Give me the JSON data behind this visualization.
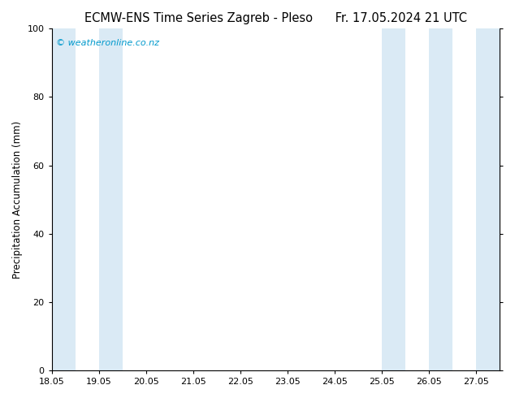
{
  "title_left": "ECMW-ENS Time Series Zagreb - Pleso",
  "title_right": "Fr. 17.05.2024 21 UTC",
  "ylabel": "Precipitation Accumulation (mm)",
  "watermark": "© weatheronline.co.nz",
  "xlim_start": 18.05,
  "xlim_end": 27.55,
  "ylim": [
    0,
    100
  ],
  "yticks": [
    0,
    20,
    40,
    60,
    80,
    100
  ],
  "xticks": [
    18.05,
    19.05,
    20.05,
    21.05,
    22.05,
    23.05,
    24.05,
    25.05,
    26.05,
    27.05
  ],
  "xtick_labels": [
    "18.05",
    "19.05",
    "20.05",
    "21.05",
    "22.05",
    "23.05",
    "24.05",
    "25.05",
    "26.05",
    "27.05"
  ],
  "shaded_bands": [
    [
      18.05,
      18.55
    ],
    [
      19.05,
      19.55
    ],
    [
      25.05,
      25.55
    ],
    [
      26.05,
      26.55
    ],
    [
      27.05,
      27.55
    ]
  ],
  "shaded_color": "#daeaf5",
  "bg_color": "#ffffff",
  "plot_bg_color": "#ffffff",
  "title_fontsize": 10.5,
  "watermark_color": "#0099cc",
  "axis_label_fontsize": 8.5,
  "tick_fontsize": 8
}
